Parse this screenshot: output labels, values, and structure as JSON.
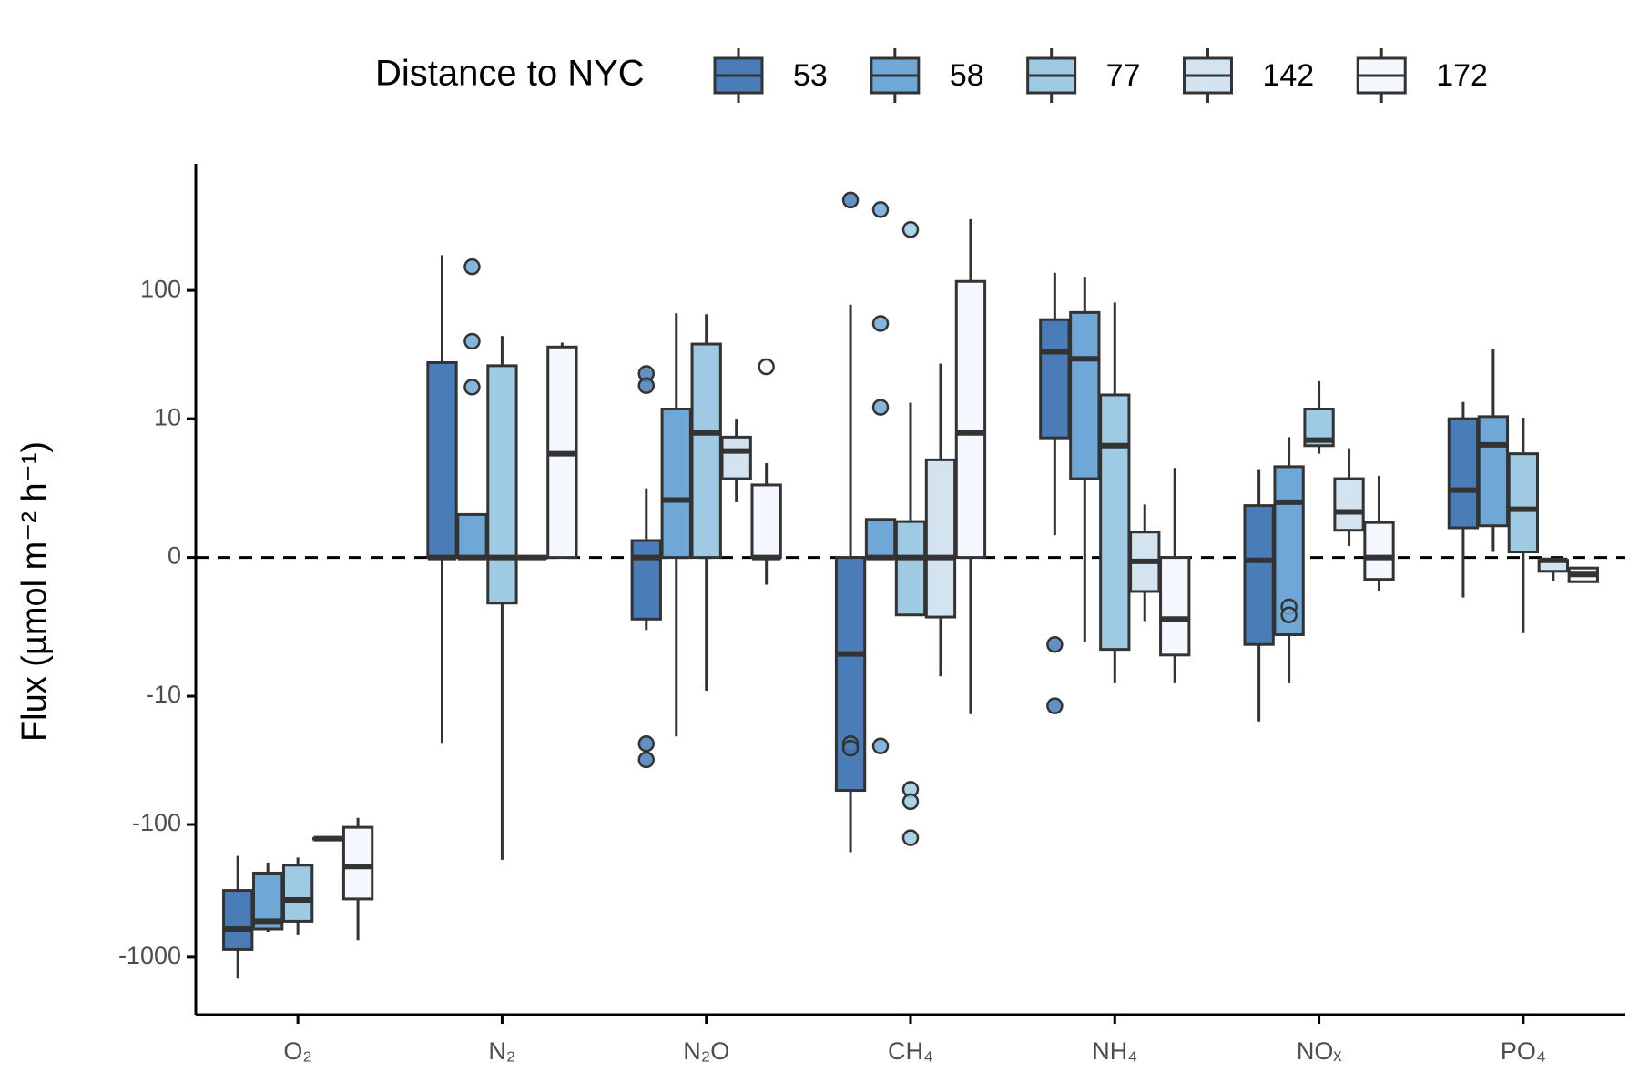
{
  "chart_data": {
    "type": "box",
    "y_label": "Flux (µmol m⁻² h⁻¹)",
    "legend_title": "Distance to NYC",
    "legend_position": "top",
    "yscale": "pseudo_log",
    "ylim": [
      -2700,
      900
    ],
    "yticks": [
      -1000,
      -100,
      -10,
      0,
      10,
      100
    ],
    "reference_line": 0,
    "categories": [
      "O₂",
      "N₂",
      "N₂O",
      "CH₄",
      "NH₄",
      "NOₓ",
      "PO₄"
    ],
    "series": [
      {
        "name": "53",
        "color": "#4a7db8",
        "values": [
          {
            "low": -1445,
            "q1": -875,
            "median": -615,
            "q3": -315,
            "high": -173,
            "outliers": []
          },
          {
            "low": -24,
            "q1": 0,
            "median": 0,
            "q3": 28,
            "high": 185,
            "outliers": []
          },
          {
            "low": -2.5,
            "q1": -1.9,
            "median": 0,
            "q3": 0.34,
            "high": 2.3,
            "outliers": [
              23,
              18.5,
              -24,
              -32
            ]
          },
          {
            "low": -162,
            "q1": -55,
            "median": -4.3,
            "q3": 0,
            "high": 78,
            "outliers": [
              480,
              -24,
              -26
            ]
          },
          {
            "low": 0.47,
            "q1": 6.9,
            "median": 34,
            "q3": 60,
            "high": 136,
            "outliers": [
              -3.5,
              -12
            ]
          },
          {
            "low": -16,
            "q1": -3.5,
            "median": -0.05,
            "q3": 1.45,
            "high": 3.6,
            "outliers": []
          },
          {
            "low": -1.0,
            "q1": 0.67,
            "median": 2.2,
            "q3": 10,
            "high": 13.7,
            "outliers": []
          }
        ]
      },
      {
        "name": "58",
        "color": "#6fa8d6",
        "values": [
          {
            "low": -645,
            "q1": -615,
            "median": -537,
            "q3": -233,
            "high": -194,
            "outliers": []
          },
          {
            "low": 0,
            "q1": 0,
            "median": 0,
            "q3": 1.1,
            "high": 1.1,
            "outliers": [
              151,
              41,
              18
            ]
          },
          {
            "low": -21,
            "q1": 0,
            "median": 1.7,
            "q3": 12,
            "high": 67,
            "outliers": []
          },
          {
            "low": 0,
            "q1": 0,
            "median": 0,
            "q3": 0.93,
            "high": 0.93,
            "outliers": [
              407,
              56,
              12.4,
              -25
            ]
          },
          {
            "low": -3.3,
            "q1": 2.9,
            "median": 30,
            "q3": 68,
            "high": 127,
            "outliers": []
          },
          {
            "low": -7.8,
            "q1": -2.8,
            "median": 1.6,
            "q3": 3.8,
            "high": 7.0,
            "outliers": [
              -1.35,
              -1.7
            ]
          },
          {
            "low": 0.1,
            "q1": 0.73,
            "median": 6.0,
            "q3": 10.4,
            "high": 36,
            "outliers": []
          }
        ]
      },
      {
        "name": "77",
        "color": "#9ecae4",
        "values": [
          {
            "low": -675,
            "q1": -537,
            "median": -371,
            "q3": -203,
            "high": -178,
            "outliers": []
          },
          {
            "low": -185,
            "q1": -1.2,
            "median": 0,
            "q3": 26.5,
            "high": 45,
            "outliers": []
          },
          {
            "low": -9,
            "q1": 0,
            "median": 7.6,
            "q3": 39,
            "high": 66,
            "outliers": []
          },
          {
            "low": -1.7,
            "q1": -1.7,
            "median": 0,
            "q3": 0.86,
            "high": 13.5,
            "outliers": [
              288,
              -54,
              -67,
              -126
            ]
          },
          {
            "low": -7.8,
            "q1": -3.9,
            "median": 5.9,
            "q3": 15.6,
            "high": 81,
            "outliers": []
          },
          {
            "low": 5.0,
            "q1": 5.9,
            "median": 6.6,
            "q3": 12,
            "high": 20,
            "outliers": []
          },
          {
            "low": -2.7,
            "q1": 0.1,
            "median": 1.3,
            "q3": 5.0,
            "high": 10.2,
            "outliers": []
          }
        ]
      },
      {
        "name": "142",
        "color": "#d3e4f0",
        "values": [
          {
            "low": -128,
            "q1": -128,
            "median": -128,
            "q3": -128,
            "high": -128,
            "outliers": []
          },
          {
            "low": 0,
            "q1": 0,
            "median": 0,
            "q3": 0,
            "high": 0,
            "outliers": []
          },
          {
            "low": 1.6,
            "q1": 2.9,
            "median": 5.3,
            "q3": 7,
            "high": 10,
            "outliers": []
          },
          {
            "low": -6.8,
            "q1": -1.8,
            "median": 0,
            "q3": 4.4,
            "high": 27.5,
            "outliers": []
          },
          {
            "low": -2.0,
            "q1": -0.8,
            "median": -0.07,
            "q3": 0.55,
            "high": 1.5,
            "outliers": []
          },
          {
            "low": 0.22,
            "q1": 0.6,
            "median": 1.2,
            "q3": 2.9,
            "high": 5.6,
            "outliers": []
          },
          {
            "low": -0.5,
            "q1": -0.27,
            "median": -0.05,
            "q3": -0.05,
            "high": -0.05,
            "outliers": []
          }
        ]
      },
      {
        "name": "172",
        "color": "#f4f7fd",
        "values": [
          {
            "low": -745,
            "q1": -365,
            "median": -208,
            "q3": -105,
            "high": -89,
            "outliers": []
          },
          {
            "low": 0,
            "q1": 0,
            "median": 5,
            "q3": 37,
            "high": 40,
            "outliers": []
          },
          {
            "low": -0.6,
            "q1": 0,
            "median": 0,
            "q3": 2.5,
            "high": 4.1,
            "outliers": [
              26
            ]
          },
          {
            "low": -14,
            "q1": 0,
            "median": 7.6,
            "q3": 117,
            "high": 345,
            "outliers": []
          },
          {
            "low": -7.8,
            "q1": -4.4,
            "median": -1.9,
            "q3": 0,
            "high": 3.7,
            "outliers": []
          },
          {
            "low": -0.8,
            "q1": -0.46,
            "median": 0,
            "q3": 0.83,
            "high": 3.1,
            "outliers": []
          },
          {
            "low": -0.52,
            "q1": -0.52,
            "median": -0.34,
            "q3": -0.2,
            "high": -0.2,
            "outliers": []
          }
        ]
      }
    ]
  }
}
